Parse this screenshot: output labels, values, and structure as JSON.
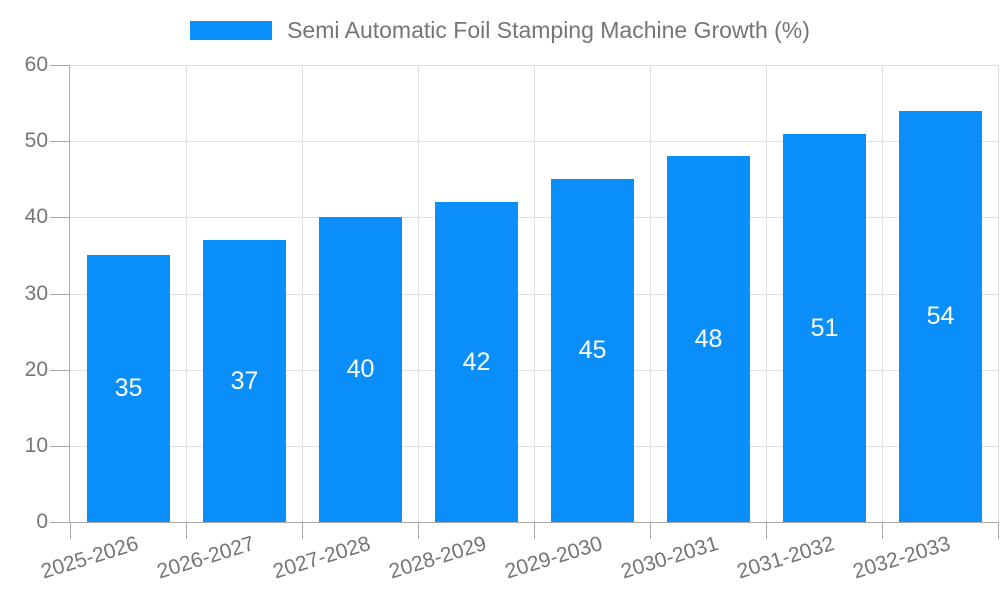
{
  "chart_data": {
    "type": "bar",
    "title": "Semi Automatic Foil Stamping Machine Growth (%)",
    "categories": [
      "2025-2026",
      "2026-2027",
      "2027-2028",
      "2028-2029",
      "2029-2030",
      "2030-2031",
      "2031-2032",
      "2032-2033"
    ],
    "values": [
      35,
      37,
      40,
      42,
      45,
      48,
      51,
      54
    ],
    "series_name": "Semi Automatic Foil Stamping Machine Growth (%)",
    "xlabel": "",
    "ylabel": "",
    "ylim": [
      0,
      60
    ],
    "yticks": [
      0,
      10,
      20,
      30,
      40,
      50,
      60
    ],
    "grid": true,
    "legend_position": "top",
    "value_labels": "inside-center",
    "x_label_rotation": -17,
    "colors": {
      "bar": "#0a8efa",
      "grid": "#e0e0e0",
      "axis": "#a8a8a8",
      "tick_text": "#757575",
      "value_label": "#ffffff",
      "background": "#ffffff"
    }
  }
}
